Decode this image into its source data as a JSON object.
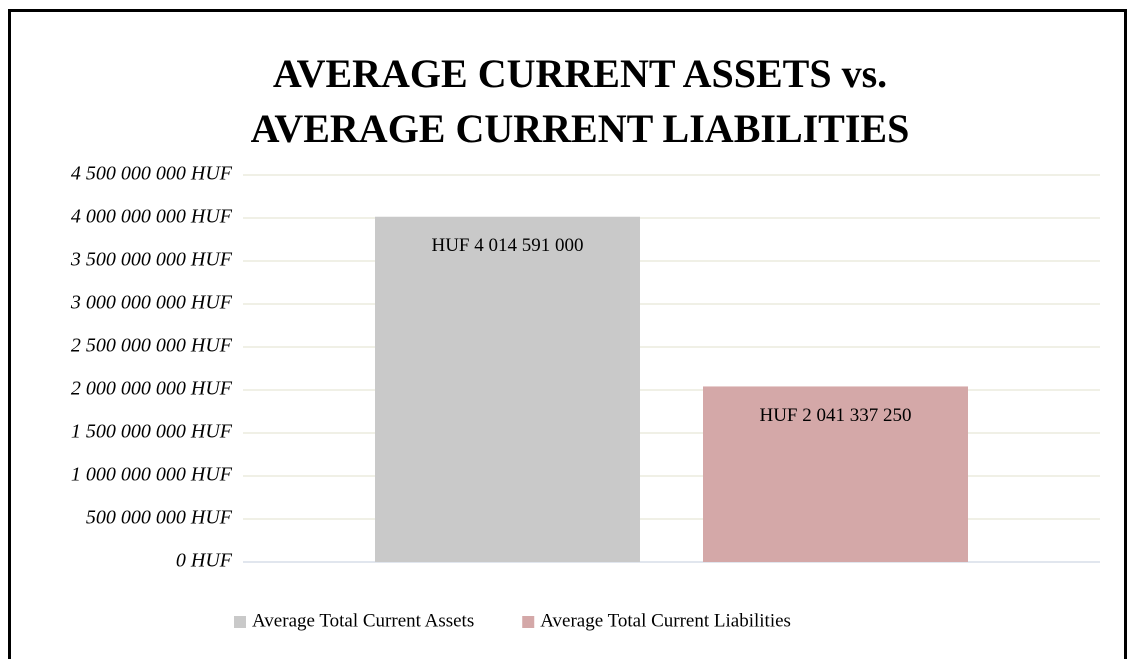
{
  "chart_data": {
    "type": "bar",
    "title": [
      "AVERAGE CURRENT ASSETS vs.",
      "AVERAGE CURRENT LIABILITIES"
    ],
    "categories": [
      null
    ],
    "series": [
      {
        "name": "Average Total Current Assets",
        "color": "#c9c9c9",
        "values": [
          4014591000
        ],
        "value_labels": [
          "HUF 4 014 591 000"
        ]
      },
      {
        "name": "Average Total Current Liabilities",
        "color": "#d4a8a8",
        "values": [
          2041337250
        ],
        "value_labels": [
          "HUF 2 041 337 250"
        ]
      }
    ],
    "ylim": [
      0,
      4500000000
    ],
    "yticks": [
      {
        "value": 0,
        "label": "0 HUF"
      },
      {
        "value": 500000000,
        "label": "500 000 000 HUF"
      },
      {
        "value": 1000000000,
        "label": "1 000 000 000 HUF"
      },
      {
        "value": 1500000000,
        "label": "1 500 000 000 HUF"
      },
      {
        "value": 2000000000,
        "label": "2 000 000 000 HUF"
      },
      {
        "value": 2500000000,
        "label": "2 500 000 000 HUF"
      },
      {
        "value": 3000000000,
        "label": "3 000 000 000 HUF"
      },
      {
        "value": 3500000000,
        "label": "3 500 000 000 HUF"
      },
      {
        "value": 4000000000,
        "label": "4 000 000 000 HUF"
      },
      {
        "value": 4500000000,
        "label": "4 500 000 000 HUF"
      }
    ],
    "grid": true,
    "legend": "bottom"
  }
}
